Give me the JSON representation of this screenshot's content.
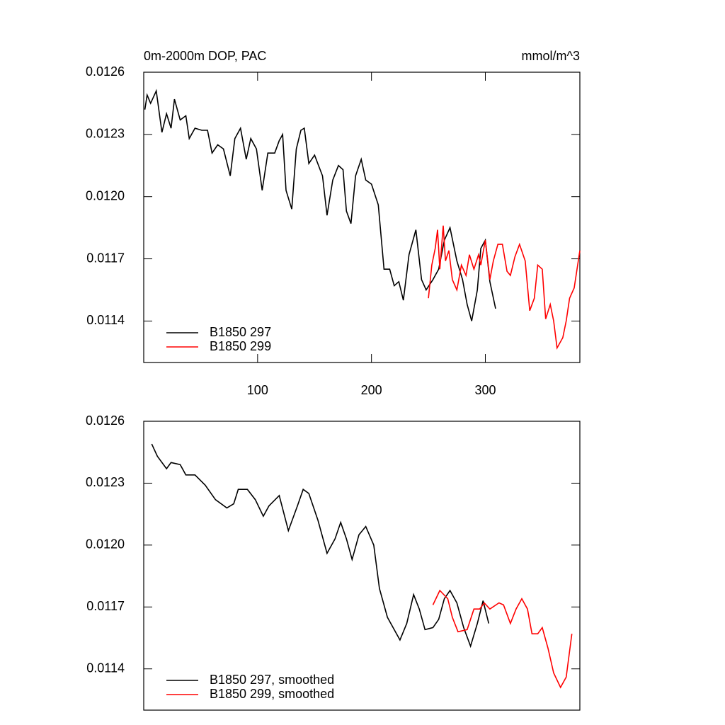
{
  "chart_data": [
    {
      "type": "line",
      "title": "0m-2000m DOP, PAC",
      "units": "mmol/m^3",
      "xlim": [
        0,
        383
      ],
      "ylim": [
        0.0112,
        0.0126
      ],
      "xticks": [
        100,
        200,
        300
      ],
      "yticks": [
        0.0126,
        0.0123,
        {
          "value": 0.012,
          "label": "0.0120"
        },
        0.0117,
        0.0114
      ],
      "legend": "lower left",
      "series": [
        {
          "name": "B1850 297",
          "color": "#000000",
          "x": [
            1,
            3,
            6,
            11,
            16,
            20,
            24,
            27,
            32,
            37,
            40,
            45,
            51,
            56,
            60,
            65,
            70,
            76,
            80,
            85,
            90,
            94,
            99,
            104,
            109,
            115,
            119,
            122,
            125,
            130,
            134,
            138,
            141,
            145,
            150,
            157,
            161,
            166,
            171,
            175,
            178,
            182,
            186,
            191,
            195,
            200,
            206,
            211,
            216,
            220,
            224,
            228,
            233,
            239,
            244,
            248,
            254,
            259,
            264,
            269,
            275,
            280,
            284,
            288,
            293,
            296,
            300,
            304,
            309
          ],
          "values": [
            0.01242,
            0.01249,
            0.01245,
            0.01251,
            0.01231,
            0.0124,
            0.01233,
            0.01247,
            0.01237,
            0.01239,
            0.01228,
            0.01233,
            0.01232,
            0.01232,
            0.01221,
            0.01225,
            0.01223,
            0.0121,
            0.01228,
            0.01233,
            0.01218,
            0.01228,
            0.01223,
            0.01203,
            0.01221,
            0.01221,
            0.01227,
            0.0123,
            0.01203,
            0.01194,
            0.01223,
            0.01232,
            0.01233,
            0.01216,
            0.0122,
            0.0121,
            0.01191,
            0.01208,
            0.01215,
            0.01213,
            0.01193,
            0.01187,
            0.0121,
            0.01218,
            0.01208,
            0.01206,
            0.01196,
            0.01165,
            0.01165,
            0.01157,
            0.01159,
            0.0115,
            0.01172,
            0.01184,
            0.0116,
            0.01155,
            0.0116,
            0.01165,
            0.01179,
            0.01185,
            0.01169,
            0.0116,
            0.01148,
            0.0114,
            0.01155,
            0.01175,
            0.01179,
            0.01159,
            0.01146
          ]
        },
        {
          "name": "B1850 299",
          "color": "#ff0000",
          "x": [
            250,
            253,
            256,
            258,
            260,
            263,
            265,
            268,
            271,
            275,
            279,
            283,
            286,
            290,
            294,
            296,
            300,
            304,
            307,
            311,
            315,
            319,
            322,
            326,
            330,
            335,
            339,
            343,
            346,
            350,
            353,
            357,
            360,
            363,
            368,
            371,
            374,
            378,
            383
          ],
          "values": [
            0.01151,
            0.01167,
            0.01175,
            0.01184,
            0.01165,
            0.01186,
            0.01169,
            0.01174,
            0.0116,
            0.01155,
            0.01167,
            0.01162,
            0.01172,
            0.01165,
            0.01172,
            0.01167,
            0.01179,
            0.0116,
            0.01169,
            0.01177,
            0.01177,
            0.01164,
            0.01162,
            0.01171,
            0.01177,
            0.01169,
            0.01145,
            0.01151,
            0.01167,
            0.01165,
            0.01141,
            0.01148,
            0.0114,
            0.01127,
            0.01132,
            0.0114,
            0.01151,
            0.01156,
            0.01174
          ]
        }
      ]
    },
    {
      "type": "line",
      "xlim": [
        0,
        383
      ],
      "ylim": [
        0.0112,
        0.0126
      ],
      "yticks": [
        0.0126,
        0.0123,
        {
          "value": 0.012,
          "label": "0.0120"
        },
        0.0117,
        0.0114
      ],
      "legend": "lower left",
      "series": [
        {
          "name": "B1850 297, smoothed",
          "color": "#000000",
          "x": [
            7,
            12,
            20,
            24,
            32,
            37,
            45,
            54,
            63,
            73,
            79,
            83,
            91,
            98,
            105,
            110,
            119,
            127,
            135,
            140,
            145,
            153,
            161,
            168,
            173,
            178,
            183,
            189,
            195,
            202,
            207,
            214,
            219,
            225,
            231,
            237,
            242,
            247,
            254,
            259,
            264,
            269,
            275,
            281,
            287,
            293,
            298,
            303
          ],
          "values": [
            0.01249,
            0.01243,
            0.01237,
            0.0124,
            0.01239,
            0.01234,
            0.01234,
            0.01229,
            0.01222,
            0.01218,
            0.0122,
            0.01227,
            0.01227,
            0.01222,
            0.01214,
            0.01219,
            0.01224,
            0.01207,
            0.01219,
            0.01227,
            0.01225,
            0.01212,
            0.01196,
            0.01203,
            0.01211,
            0.01203,
            0.01193,
            0.01205,
            0.01209,
            0.012,
            0.01179,
            0.01165,
            0.0116,
            0.01154,
            0.01162,
            0.01176,
            0.01169,
            0.01159,
            0.0116,
            0.01164,
            0.01174,
            0.01178,
            0.01172,
            0.0116,
            0.01151,
            0.01162,
            0.01173,
            0.01162
          ]
        },
        {
          "name": "B1850 299, smoothed",
          "color": "#ff0000",
          "x": [
            254,
            260,
            267,
            271,
            276,
            284,
            290,
            295,
            299,
            304,
            312,
            316,
            322,
            327,
            332,
            337,
            341,
            346,
            350,
            355,
            360,
            366,
            371,
            376
          ],
          "values": [
            0.01171,
            0.01178,
            0.01174,
            0.01165,
            0.01158,
            0.01159,
            0.01169,
            0.01169,
            0.01172,
            0.01169,
            0.01172,
            0.01171,
            0.01162,
            0.01169,
            0.01174,
            0.01169,
            0.01157,
            0.01157,
            0.0116,
            0.0115,
            0.01138,
            0.01131,
            0.01136,
            0.01157
          ]
        }
      ]
    }
  ]
}
